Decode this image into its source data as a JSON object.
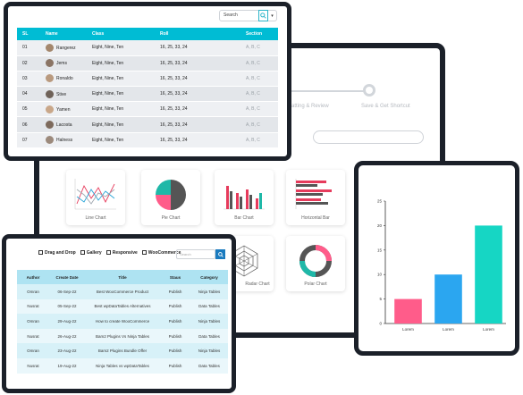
{
  "wizard": {
    "steps": [
      "Formatting & Review",
      "Save & Get Shortcut"
    ]
  },
  "chart_tiles": [
    {
      "label": "Line Chart"
    },
    {
      "label": "Pie Chart"
    },
    {
      "label": "Bar Chart"
    },
    {
      "label": "Horizontal Bar"
    },
    {
      "label": "Radar Chart"
    },
    {
      "label": "Polar Chart"
    }
  ],
  "table1": {
    "search_value": "Search",
    "columns": [
      "SL",
      "Name",
      "Class",
      "Roll",
      "Section"
    ],
    "rows": [
      {
        "sl": "01",
        "name": "Rangerez",
        "class": "Eight, Nine, Ten",
        "roll": "16, 25, 33, 24",
        "section": "A, B, C"
      },
      {
        "sl": "02",
        "name": "Jems",
        "class": "Eight, Nine, Ten",
        "roll": "16, 25, 33, 24",
        "section": "A, B, C"
      },
      {
        "sl": "03",
        "name": "Ronaldo",
        "class": "Eight, Nine, Ten",
        "roll": "16, 25, 33, 24",
        "section": "A, B, C"
      },
      {
        "sl": "04",
        "name": "Stive",
        "class": "Eight, Nine, Ten",
        "roll": "16, 25, 33, 24",
        "section": "A, B, C"
      },
      {
        "sl": "05",
        "name": "Yamen",
        "class": "Eight, Nine, Ten",
        "roll": "16, 25, 33, 24",
        "section": "A, B, C"
      },
      {
        "sl": "06",
        "name": "Lacosta",
        "class": "Eight, Nine, Ten",
        "roll": "16, 25, 33, 24",
        "section": "A, B, C"
      },
      {
        "sl": "07",
        "name": "Halness",
        "class": "Eight, Nine, Ten",
        "roll": "16, 25, 33, 24",
        "section": "A, B, C"
      }
    ]
  },
  "table2": {
    "filters": [
      "Drag and Drop",
      "Gallery",
      "Responsive",
      "WooCommerce"
    ],
    "search_placeholder": "Search",
    "columns": [
      "Author",
      "Create Date",
      "Title",
      "Staus",
      "Category"
    ],
    "rows": [
      {
        "author": "Omran",
        "date": "06-Sep-22",
        "title": "Best WooCommerce Product",
        "status": "Publish",
        "category": "Ninja Tables"
      },
      {
        "author": "Nusrat",
        "date": "05-Sep-22",
        "title": "Best wpDataTables Alternatives",
        "status": "Publish",
        "category": "Data Tables"
      },
      {
        "author": "Omran",
        "date": "29-Aug-22",
        "title": "How to create WooCommerce",
        "status": "Publish",
        "category": "Ninja Tables"
      },
      {
        "author": "Nusrat",
        "date": "26-Aug-22",
        "title": "Bam2 Plugins Vs Ninja Tables",
        "status": "Publish",
        "category": "Data Tables"
      },
      {
        "author": "Omran",
        "date": "23-Aug-22",
        "title": "Bam2 Plugins Bundle Offer",
        "status": "Publish",
        "category": "Ninja Tables"
      },
      {
        "author": "Nusrat",
        "date": "19-Aug-22",
        "title": "Ninja Tables vs wpDataTables",
        "status": "Publish",
        "category": "Data Tables"
      }
    ]
  },
  "chart_data": {
    "type": "bar",
    "categories": [
      "Lorem",
      "Lorem",
      "Lorem"
    ],
    "values": [
      5,
      10,
      20
    ],
    "colors": [
      "#ff5c8a",
      "#2ba6f0",
      "#16d6c4"
    ],
    "ylim": [
      0,
      25
    ],
    "yticks": [
      0,
      5,
      10,
      15,
      20,
      25
    ],
    "title": "",
    "xlabel": "",
    "ylabel": ""
  }
}
